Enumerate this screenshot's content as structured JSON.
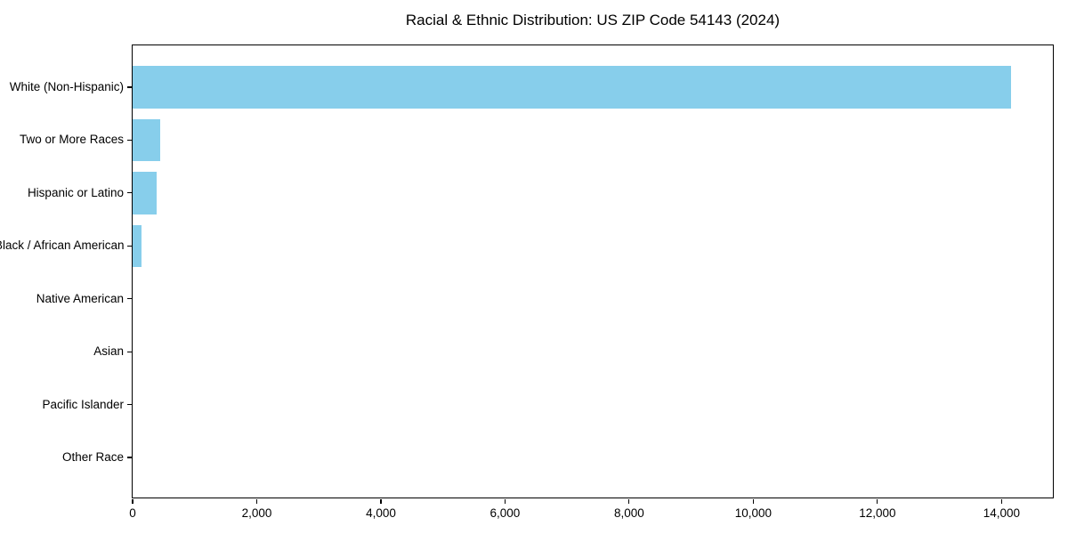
{
  "chart_data": {
    "type": "bar",
    "orientation": "horizontal",
    "title": "Racial & Ethnic Distribution: US ZIP Code 54143 (2024)",
    "categories": [
      "White (Non-Hispanic)",
      "Two or More Races",
      "Hispanic or Latino",
      "Black / African American",
      "Native American",
      "Asian",
      "Pacific Islander",
      "Other Race"
    ],
    "values": [
      14150,
      450,
      385,
      140,
      0,
      0,
      0,
      0
    ],
    "bar_color": "#87CEEB",
    "xlabel": "",
    "ylabel": "",
    "xlim": [
      0,
      14855
    ],
    "x_ticks": [
      0,
      2000,
      4000,
      6000,
      8000,
      10000,
      12000,
      14000
    ],
    "x_tick_labels": [
      "0",
      "2,000",
      "4,000",
      "6,000",
      "8,000",
      "10,000",
      "12,000",
      "14,000"
    ],
    "grid": false,
    "legend": "none",
    "frame_color": "#000000",
    "background_color": "#ffffff"
  }
}
